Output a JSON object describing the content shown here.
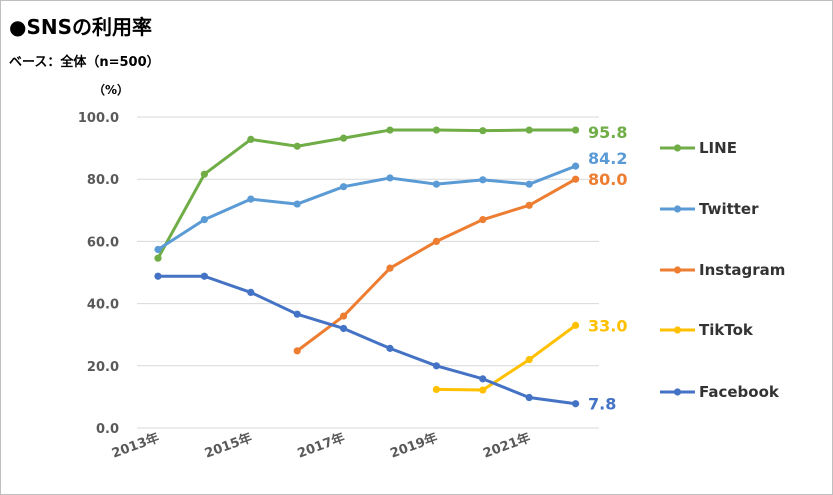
{
  "title": "●SNSの利用率",
  "subtitle": "ベース：全体（n=500）",
  "unit": "（%）",
  "chart_data": {
    "type": "line",
    "x": [
      2013,
      2014,
      2015,
      2016,
      2017,
      2018,
      2019,
      2020,
      2021,
      2022
    ],
    "xtick_labels": [
      "2013年",
      "2015年",
      "2017年",
      "2019年",
      "2021年"
    ],
    "xtick_values": [
      2013,
      2015,
      2017,
      2019,
      2021
    ],
    "ylim": [
      0,
      100
    ],
    "yticks": [
      "0.0",
      "20.0",
      "40.0",
      "60.0",
      "80.0",
      "100.0"
    ],
    "ytick_values": [
      0,
      20,
      40,
      60,
      80,
      100
    ],
    "grid": true,
    "legend_position": "right",
    "series": [
      {
        "name": "LINE",
        "color": "#70ad47",
        "end_label": "95.8",
        "values": [
          54.6,
          81.6,
          92.8,
          90.6,
          93.2,
          95.8,
          95.8,
          95.6,
          95.8,
          95.8
        ]
      },
      {
        "name": "Twitter",
        "color": "#5b9bd5",
        "end_label": "84.2",
        "values": [
          57.4,
          67.0,
          73.6,
          72.0,
          77.6,
          80.4,
          78.4,
          79.8,
          78.4,
          84.2
        ]
      },
      {
        "name": "Instagram",
        "color": "#ed7d31",
        "end_label": "80.0",
        "values": [
          null,
          null,
          null,
          24.8,
          36.0,
          51.4,
          60.0,
          67.0,
          71.6,
          80.0
        ]
      },
      {
        "name": "TikTok",
        "color": "#ffc000",
        "end_label": "33.0",
        "values": [
          null,
          null,
          null,
          null,
          null,
          null,
          12.4,
          12.2,
          22.0,
          33.0
        ]
      },
      {
        "name": "Facebook",
        "color": "#4472c4",
        "end_label": "7.8",
        "values": [
          48.8,
          48.8,
          43.6,
          36.6,
          32.0,
          25.6,
          20.0,
          15.8,
          9.8,
          7.8
        ]
      }
    ]
  }
}
